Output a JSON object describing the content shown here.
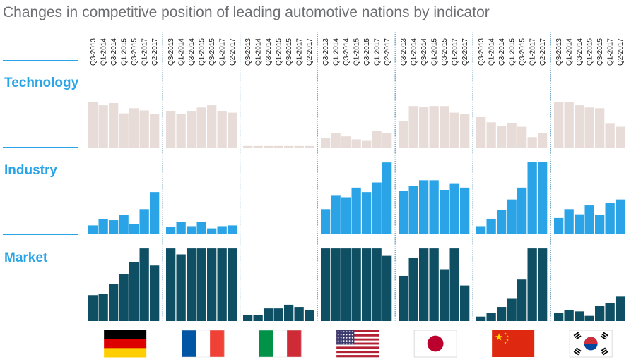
{
  "chart_data": {
    "type": "bar",
    "title": "Changes in competitive position of leading automotive nations by indicator",
    "categories": [
      "Q3-2013",
      "Q1-2014",
      "Q3-2014",
      "Q1-2015",
      "Q3-2015",
      "Q1-2017",
      "Q2-2017"
    ],
    "x_tick_labels": [
      "Q3-2013",
      "Q1-2014",
      "Q3-2014",
      "Q1-2015",
      "Q3-2015",
      "Q1-2017",
      "Q2-2017"
    ],
    "countries": [
      "Germany",
      "France",
      "Italy",
      "USA",
      "Japan",
      "China",
      "South Korea"
    ],
    "indicators": [
      {
        "name": "Technology",
        "label_color": "#2aa4e6",
        "bar_color": "#e8dcd8",
        "values": {
          "Germany": [
            0.62,
            0.58,
            0.61,
            0.47,
            0.54,
            0.51,
            0.46
          ],
          "France": [
            0.5,
            0.46,
            0.5,
            0.55,
            0.58,
            0.5,
            0.48
          ],
          "Italy": [
            0.03,
            0.03,
            0.03,
            0.03,
            0.03,
            0.03,
            0.03
          ],
          "USA": [
            0.14,
            0.2,
            0.16,
            0.12,
            0.1,
            0.23,
            0.2
          ],
          "Japan": [
            0.37,
            0.57,
            0.56,
            0.57,
            0.57,
            0.48,
            0.46
          ],
          "China": [
            0.42,
            0.35,
            0.3,
            0.34,
            0.29,
            0.15,
            0.21
          ],
          "South Korea": [
            0.62,
            0.62,
            0.58,
            0.55,
            0.54,
            0.33,
            0.29
          ]
        }
      },
      {
        "name": "Industry",
        "label_color": "#2aa4e6",
        "bar_color": "#2aa4e6",
        "values": {
          "Germany": [
            0.12,
            0.2,
            0.19,
            0.26,
            0.14,
            0.34,
            0.57
          ],
          "France": [
            0.1,
            0.17,
            0.11,
            0.17,
            0.08,
            0.11,
            0.12
          ],
          "Italy": [
            0,
            0,
            0,
            0,
            0,
            0,
            0
          ],
          "USA": [
            0.34,
            0.52,
            0.5,
            0.63,
            0.57,
            0.7,
            0.97
          ],
          "Japan": [
            0.59,
            0.65,
            0.73,
            0.73,
            0.6,
            0.68,
            0.63
          ],
          "China": [
            0.11,
            0.21,
            0.33,
            0.47,
            0.63,
            0.98,
            0.98
          ],
          "South Korea": [
            0.22,
            0.34,
            0.27,
            0.39,
            0.26,
            0.42,
            0.47
          ]
        }
      },
      {
        "name": "Market",
        "label_color": "#2aa4e6",
        "bar_color": "#0f4f63",
        "values": {
          "Germany": [
            0.35,
            0.37,
            0.5,
            0.63,
            0.8,
            0.98,
            0.75
          ],
          "France": [
            0.98,
            0.9,
            0.98,
            0.98,
            0.98,
            0.98,
            0.98
          ],
          "Italy": [
            0.08,
            0.08,
            0.17,
            0.17,
            0.22,
            0.19,
            0.15
          ],
          "USA": [
            0.98,
            0.98,
            0.98,
            0.98,
            0.98,
            0.98,
            0.88
          ],
          "Japan": [
            0.61,
            0.85,
            0.98,
            0.98,
            0.7,
            0.98,
            0.48
          ],
          "China": [
            0.06,
            0.11,
            0.19,
            0.3,
            0.56,
            0.98,
            0.98
          ],
          "South Korea": [
            0.11,
            0.15,
            0.13,
            0.07,
            0.2,
            0.24,
            0.33
          ]
        }
      }
    ],
    "grid": false,
    "legend": "none"
  },
  "flags": {
    "Germany": {
      "icon": "germany-flag-icon",
      "colors": [
        "#000000",
        "#dd0000",
        "#ffce00"
      ]
    },
    "France": {
      "icon": "france-flag-icon",
      "colors": [
        "#0055a4",
        "#ffffff",
        "#ef4135"
      ]
    },
    "Italy": {
      "icon": "italy-flag-icon",
      "colors": [
        "#009246",
        "#ffffff",
        "#ce2b37"
      ]
    },
    "USA": {
      "icon": "usa-flag-icon",
      "colors": [
        "#b22234",
        "#ffffff",
        "#3c3b6e"
      ]
    },
    "Japan": {
      "icon": "japan-flag-icon",
      "colors": [
        "#ffffff",
        "#bc002d"
      ]
    },
    "China": {
      "icon": "china-flag-icon",
      "colors": [
        "#de2910",
        "#ffde00"
      ]
    },
    "South Korea": {
      "icon": "south-korea-flag-icon",
      "colors": [
        "#ffffff",
        "#cd2e3a",
        "#0047a0",
        "#000000"
      ]
    }
  },
  "colors": {
    "title": "#6d6e71",
    "label": "#2aa4e6",
    "separator": "#2aa4e6",
    "divider": "#3a7fa8"
  }
}
